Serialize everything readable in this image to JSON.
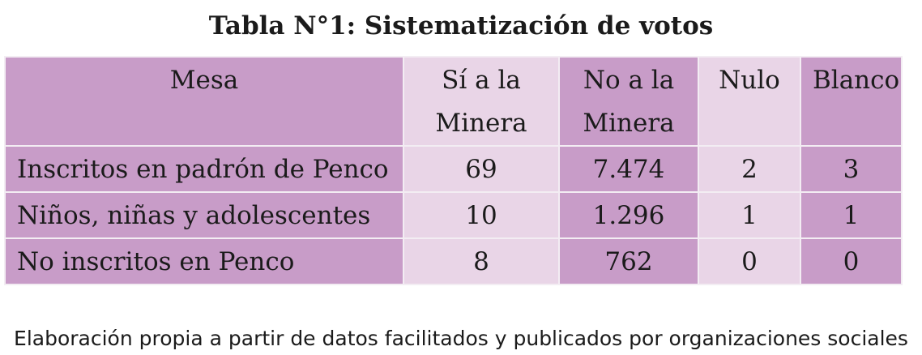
{
  "title": "Tabla N°1: Sistematización de votos",
  "table": {
    "headers": [
      "Mesa",
      "Sí a la Minera",
      "No a la Minera",
      "Nulo",
      "Blanco"
    ],
    "rows": [
      [
        "Inscritos en padrón de Penco",
        "69",
        "7.474",
        "2",
        "3"
      ],
      [
        "Niños, niñas y adolescentes",
        "10",
        "1.296",
        "1",
        "1"
      ],
      [
        "No inscritos en Penco",
        "8",
        "762",
        "0",
        "0"
      ]
    ]
  },
  "footnote": "Elaboración propia a partir de datos facilitados y publicados por organizaciones sociales",
  "colors": {
    "dark_column": "#c89cc8",
    "light_column": "#e9d5e7",
    "grid_lines": "#f3edf3"
  }
}
